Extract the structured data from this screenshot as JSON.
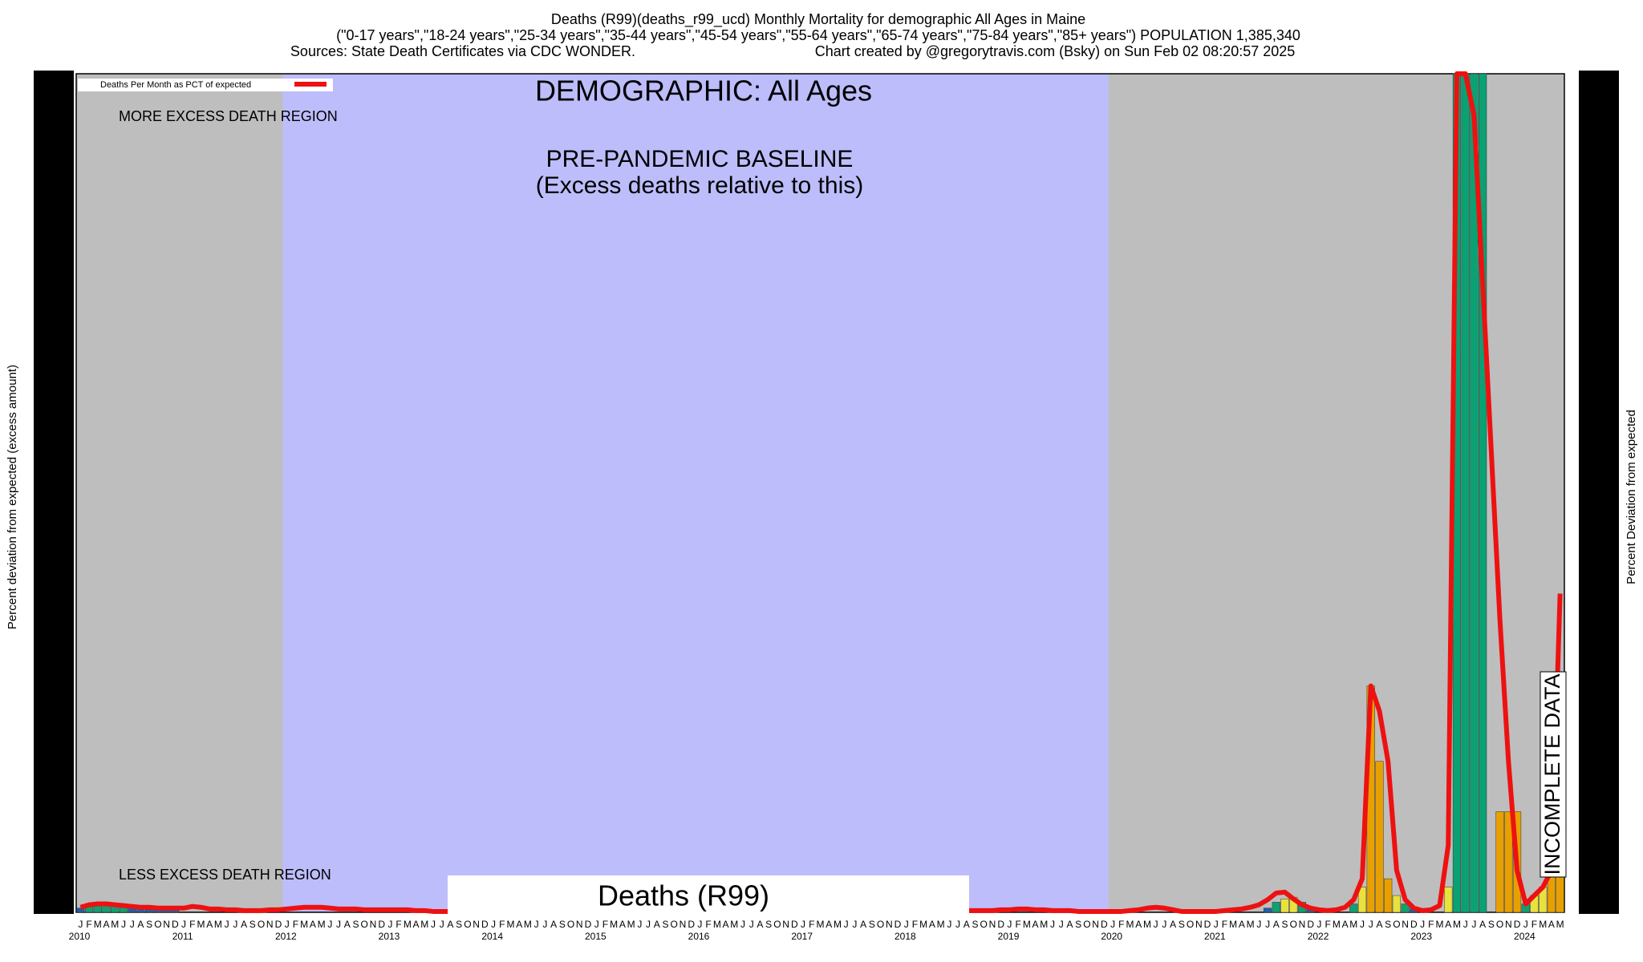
{
  "chart_data": {
    "type": "line",
    "title": "Deaths (R99)(deaths_r99_ucd) Monthly Mortality for demographic All Ages in Maine",
    "subtitle": "(\"0-17 years\",\"18-24 years\",\"25-34 years\",\"35-44 years\",\"45-54 years\",\"55-64 years\",\"65-74 years\",\"75-84 years\",\"85+ years\") POPULATION 1,385,340",
    "source": "Sources: State Death Certificates via CDC WONDER.",
    "credit": "Chart created by @gregorytravis.com (Bsky) on Sun Feb 02 08:20:57 2025",
    "y_label": "Percent deviation from expected (excess amount)",
    "y2_label": "Percent Deviation from expected",
    "annotations": {
      "demographic": "DEMOGRAPHIC: All Ages",
      "more": "MORE EXCESS DEATH REGION",
      "baseline": "PRE-PANDEMIC BASELINE",
      "baseline_note": "(Excess deaths relative to this)",
      "less": "LESS EXCESS DEATH REGION",
      "cause": "Deaths (R99)",
      "incomplete": "INCOMPLETE DATA"
    },
    "years": [
      "2010",
      "2011",
      "2012",
      "2013",
      "2014",
      "2015",
      "2016",
      "2017",
      "2018",
      "2019",
      "2020",
      "2021",
      "2022",
      "2023",
      "2024"
    ],
    "months": [
      "J",
      "F",
      "M",
      "A",
      "M",
      "J",
      "J",
      "A",
      "S",
      "O",
      "N",
      "D"
    ],
    "baseline_years": [
      "2012",
      "2019"
    ],
    "region_colors": {
      "outside": "#bebebe",
      "baseline": "#bdbdfb"
    },
    "ylim": [
      0,
      100
    ],
    "legend": "top-left",
    "series": [
      {
        "name": "Deaths Per Month as PCT of expected",
        "color": "#ee1111",
        "values": [
          0.6,
          0.9,
          1.0,
          1.0,
          0.9,
          0.8,
          0.7,
          0.6,
          0.6,
          0.5,
          0.5,
          0.5,
          0.5,
          0.7,
          0.6,
          0.4,
          0.4,
          0.3,
          0.3,
          0.2,
          0.2,
          0.2,
          0.3,
          0.3,
          0.4,
          0.5,
          0.6,
          0.6,
          0.6,
          0.5,
          0.4,
          0.4,
          0.4,
          0.3,
          0.3,
          0.3,
          0.3,
          0.3,
          0.3,
          0.2,
          0.2,
          0.1,
          0.1,
          0.1,
          0.1,
          0.1,
          0.1,
          0.1,
          0.1,
          0.2,
          0.2,
          0.2,
          0.2,
          0.2,
          0.2,
          0.2,
          0.2,
          0.2,
          0.1,
          0.1,
          0.1,
          0.1,
          0.2,
          0.2,
          0.2,
          0.2,
          0.2,
          0.2,
          0.2,
          0.2,
          0.2,
          0.2,
          0.2,
          0.2,
          0.2,
          0.2,
          0.2,
          0.2,
          0.2,
          0.3,
          0.3,
          0.3,
          0.3,
          0.3,
          0.3,
          0.3,
          0.3,
          0.3,
          0.3,
          0.3,
          0.3,
          0.3,
          0.3,
          0.3,
          0.3,
          0.3,
          0.4,
          0.4,
          0.3,
          0.3,
          0.3,
          0.3,
          0.2,
          0.2,
          0.2,
          0.2,
          0.2,
          0.3,
          0.3,
          0.4,
          0.4,
          0.3,
          0.3,
          0.2,
          0.2,
          0.2,
          0.1,
          0.1,
          0.1,
          0.1,
          0.1,
          0.1,
          0.2,
          0.3,
          0.5,
          0.6,
          0.5,
          0.3,
          0.1,
          0.1,
          0.1,
          0.1,
          0.1,
          0.2,
          0.3,
          0.4,
          0.6,
          0.9,
          1.5,
          2.3,
          2.4,
          1.6,
          0.9,
          0.5,
          0.3,
          0.2,
          0.3,
          0.6,
          1.5,
          4,
          27,
          24,
          18,
          5,
          1.5,
          0.5,
          0.2,
          0.3,
          0.8,
          8,
          100,
          100,
          95,
          75,
          55,
          35,
          18,
          5,
          1,
          2,
          3,
          5,
          38
        ]
      }
    ],
    "bars": {
      "color_scale": [
        {
          "above": 0,
          "color": "#1f5fa8"
        },
        {
          "above": 0.7,
          "color": "#11a070"
        },
        {
          "above": 1.4,
          "color": "#e9e13d"
        },
        {
          "above": 3,
          "color": "#e8a000"
        },
        {
          "above": 50,
          "color": "#0aa173"
        }
      ],
      "values": [
        0.5,
        0.8,
        1,
        1,
        0.9,
        0.8,
        0.6,
        0.5,
        0.4,
        0.3,
        0.3,
        0.3,
        0,
        0,
        0,
        0,
        0,
        0,
        0,
        0,
        0,
        0,
        0,
        0,
        0,
        0,
        0,
        0,
        0,
        0,
        0,
        0,
        0,
        0,
        0,
        0,
        0,
        0,
        0,
        0,
        0,
        0,
        0,
        0,
        0,
        0,
        0,
        0,
        0,
        0,
        0,
        0,
        0,
        0,
        0,
        0,
        0,
        0,
        0,
        0,
        0,
        0,
        0,
        0,
        0,
        0,
        0,
        0,
        0,
        0,
        0,
        0,
        0,
        0,
        0,
        0,
        0,
        0,
        0,
        0,
        0,
        0,
        0,
        0,
        0,
        0,
        0,
        0,
        0,
        0,
        0,
        0,
        0,
        0,
        0,
        0,
        0,
        0,
        0,
        0,
        0,
        0,
        0,
        0,
        0,
        0,
        0,
        0,
        0,
        0,
        0,
        0,
        0,
        0,
        0,
        0,
        0,
        0,
        0,
        0,
        0,
        0,
        0,
        0,
        0,
        0,
        0,
        0,
        0,
        0,
        0,
        0,
        0,
        0,
        0,
        0,
        0,
        0,
        0.5,
        1.2,
        1.6,
        1.8,
        1.2,
        0.5,
        0,
        0,
        0,
        0,
        1,
        3,
        27,
        18,
        4,
        2,
        1,
        0.5,
        0,
        0,
        0,
        3,
        100,
        100,
        100,
        100,
        0,
        12,
        12,
        12,
        1,
        2,
        3,
        5,
        8
      ]
    }
  }
}
